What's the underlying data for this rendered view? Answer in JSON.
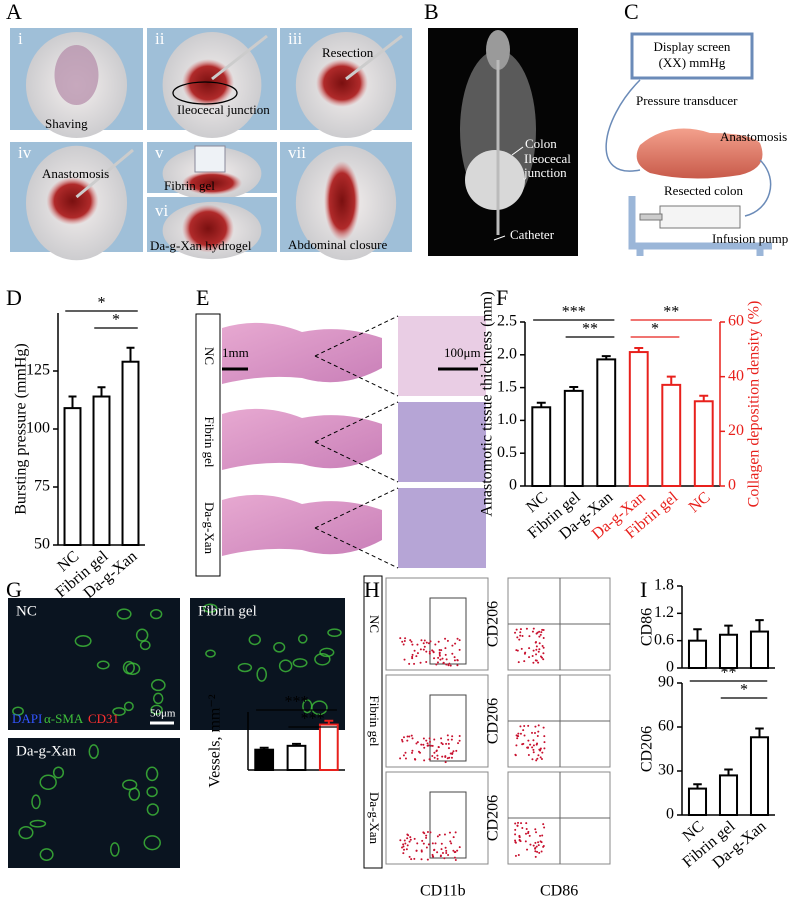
{
  "panel_labels": [
    "A",
    "B",
    "C",
    "D",
    "E",
    "F",
    "G",
    "H",
    "I"
  ],
  "panel_a": {
    "steps": [
      "i",
      "ii",
      "iii",
      "iv",
      "v",
      "vi",
      "vii"
    ],
    "captions": [
      "Shaving",
      "Ileocecal junction",
      "Resection",
      "Anastomosis",
      "Fibrin gel",
      "Da-g-Xan hydrogel",
      "Abdominal closure"
    ]
  },
  "panel_b": {
    "labels": [
      "Colon",
      "Ileocecal",
      "junction",
      "Catheter"
    ]
  },
  "panel_c": {
    "display": "Display screen",
    "reading": "(XX) mmHg",
    "transducer": "Pressure transducer",
    "anastomosis": "Anastomosis",
    "colon": "Resected colon",
    "pump": "Infusion pump"
  },
  "panel_e": {
    "groups": [
      "NC",
      "Fibrin gel",
      "Da-g-Xan"
    ],
    "scale_low": "1mm",
    "scale_high": "100μm"
  },
  "panel_g": {
    "groups": [
      "NC",
      "Fibrin gel",
      "Da-g-Xan"
    ],
    "stains": [
      "DAPI",
      "α-SMA",
      "CD31"
    ],
    "scale": "50μm"
  },
  "panel_h": {
    "groups": [
      "NC",
      "Fibrin gel",
      "Da-g-Xan"
    ],
    "y_label": "CD206",
    "x_labels": [
      "CD11b",
      "CD86"
    ]
  },
  "chart_data": [
    {
      "type": "bar",
      "y_label": "Bursting pressure (mmHg)",
      "categories": [
        "NC",
        "Fibrin gel",
        "Da-g-Xan"
      ],
      "series": [
        {
          "color": "#000000",
          "values": [
            109,
            114,
            129
          ],
          "errors": [
            5,
            4,
            6
          ]
        }
      ],
      "ylim": [
        50,
        150
      ],
      "yticks": [
        50,
        75,
        100,
        125
      ],
      "significance": [
        {
          "from": 0,
          "to": 2,
          "label": "*"
        },
        {
          "from": 1,
          "to": 2,
          "label": "*"
        }
      ]
    },
    {
      "type": "bar",
      "y_label": "Anastomotic tissue thickness  (mm)",
      "y2_label": "Collagen deposition density (%)",
      "categories": [
        "NC",
        "Fibrin gel",
        "Da-g-Xan",
        "Da-g-Xan",
        "Fibrin gel",
        "NC"
      ],
      "series": [
        {
          "color": "#000000",
          "values": [
            1.2,
            1.45,
            1.93,
            null,
            null,
            null
          ],
          "errors": [
            0.07,
            0.06,
            0.05,
            null,
            null,
            null
          ]
        },
        {
          "color": "#e8201c",
          "axis": "y2",
          "values": [
            null,
            null,
            null,
            49,
            37,
            31
          ],
          "errors": [
            null,
            null,
            null,
            1.5,
            3,
            2
          ]
        }
      ],
      "ylim": [
        0,
        2.5
      ],
      "yticks": [
        0,
        0.5,
        {
          "value": 1,
          "label": "1.0"
        },
        1.5,
        {
          "value": 2,
          "label": "2.0"
        },
        2.5
      ],
      "y2lim": [
        0,
        60
      ],
      "y2ticks": [
        0,
        20,
        40,
        60
      ],
      "significance": [
        {
          "from": 0,
          "to": 2,
          "label": "***"
        },
        {
          "from": 1,
          "to": 2,
          "label": "**"
        },
        {
          "from": 3,
          "to": 5,
          "label": "**"
        },
        {
          "from": 3,
          "to": 4,
          "label": "*"
        }
      ]
    },
    {
      "type": "bar",
      "y_label": "Vessels, mm⁻²",
      "series": [
        {
          "color": "#000000",
          "values": [
            21,
            25,
            47
          ],
          "errors": [
            2,
            2,
            4
          ]
        }
      ],
      "bar_fills": [
        "#000000",
        "#ffffff",
        "#ffffff"
      ],
      "bar_edges": [
        "#000000",
        "#000000",
        "#e8201c"
      ],
      "ylim": [
        0,
        60
      ],
      "significance": [
        {
          "from": 0,
          "to": 2,
          "label": "***"
        },
        {
          "from": 1,
          "to": 2,
          "label": "***"
        }
      ]
    },
    {
      "type": "bar",
      "y_label": "CD86",
      "series": [
        {
          "color": "#000000",
          "values": [
            0.6,
            0.73,
            0.8
          ],
          "errors": [
            0.25,
            0.2,
            0.25
          ]
        }
      ],
      "ylim": [
        0,
        1.8
      ],
      "yticks": [
        0,
        0.6,
        1.2,
        1.8
      ]
    },
    {
      "type": "bar",
      "y_label": "CD206",
      "categories": [
        "NC",
        "Fibrin gel",
        "Da-g-Xan"
      ],
      "series": [
        {
          "color": "#000000",
          "values": [
            18,
            27,
            53
          ],
          "errors": [
            3,
            4,
            6
          ]
        }
      ],
      "ylim": [
        0,
        90
      ],
      "yticks": [
        0,
        30,
        60,
        90
      ],
      "significance": [
        {
          "from": 0,
          "to": 2,
          "label": "**"
        },
        {
          "from": 1,
          "to": 2,
          "label": "*"
        }
      ]
    }
  ]
}
